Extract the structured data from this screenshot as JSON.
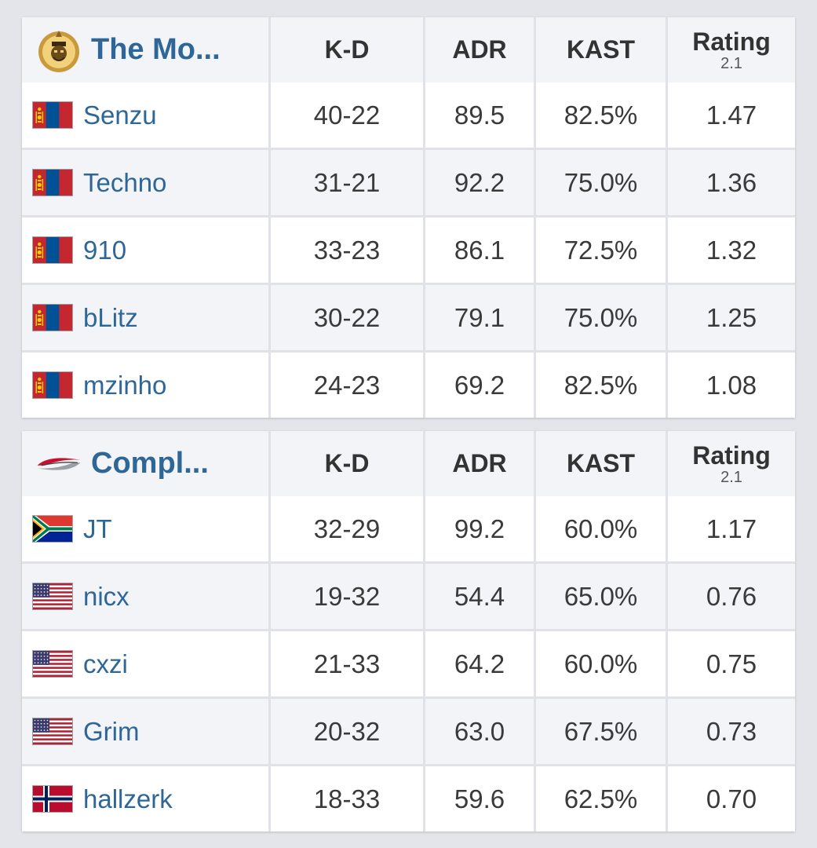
{
  "headers": {
    "kd": "K-D",
    "adr": "ADR",
    "kast": "KAST",
    "rating": "Rating",
    "rating_version": "2.1"
  },
  "teams": [
    {
      "name": "The Mo...",
      "logo_icon": "team-mongolz-logo-icon",
      "players": [
        {
          "name": "Senzu",
          "flag": "mongolia",
          "kd": "40-22",
          "adr": "89.5",
          "kast": "82.5%",
          "rating": "1.47"
        },
        {
          "name": "Techno",
          "flag": "mongolia",
          "kd": "31-21",
          "adr": "92.2",
          "kast": "75.0%",
          "rating": "1.36"
        },
        {
          "name": "910",
          "flag": "mongolia",
          "kd": "33-23",
          "adr": "86.1",
          "kast": "72.5%",
          "rating": "1.32"
        },
        {
          "name": "bLitz",
          "flag": "mongolia",
          "kd": "30-22",
          "adr": "79.1",
          "kast": "75.0%",
          "rating": "1.25"
        },
        {
          "name": "mzinho",
          "flag": "mongolia",
          "kd": "24-23",
          "adr": "69.2",
          "kast": "82.5%",
          "rating": "1.08"
        }
      ]
    },
    {
      "name": "Compl...",
      "logo_icon": "team-complexity-logo-icon",
      "players": [
        {
          "name": "JT",
          "flag": "south-africa",
          "kd": "32-29",
          "adr": "99.2",
          "kast": "60.0%",
          "rating": "1.17"
        },
        {
          "name": "nicx",
          "flag": "usa",
          "kd": "19-32",
          "adr": "54.4",
          "kast": "65.0%",
          "rating": "0.76"
        },
        {
          "name": "cxzi",
          "flag": "usa",
          "kd": "21-33",
          "adr": "64.2",
          "kast": "60.0%",
          "rating": "0.75"
        },
        {
          "name": "Grim",
          "flag": "usa",
          "kd": "20-32",
          "adr": "63.0",
          "kast": "67.5%",
          "rating": "0.73"
        },
        {
          "name": "hallzerk",
          "flag": "norway",
          "kd": "18-33",
          "adr": "59.6",
          "kast": "62.5%",
          "rating": "0.70"
        }
      ]
    }
  ],
  "colors": {
    "link": "#2e6797",
    "row_alt": "#f3f4f7",
    "border": "#e0e2e7",
    "page_bg": "#e3e5ea"
  }
}
